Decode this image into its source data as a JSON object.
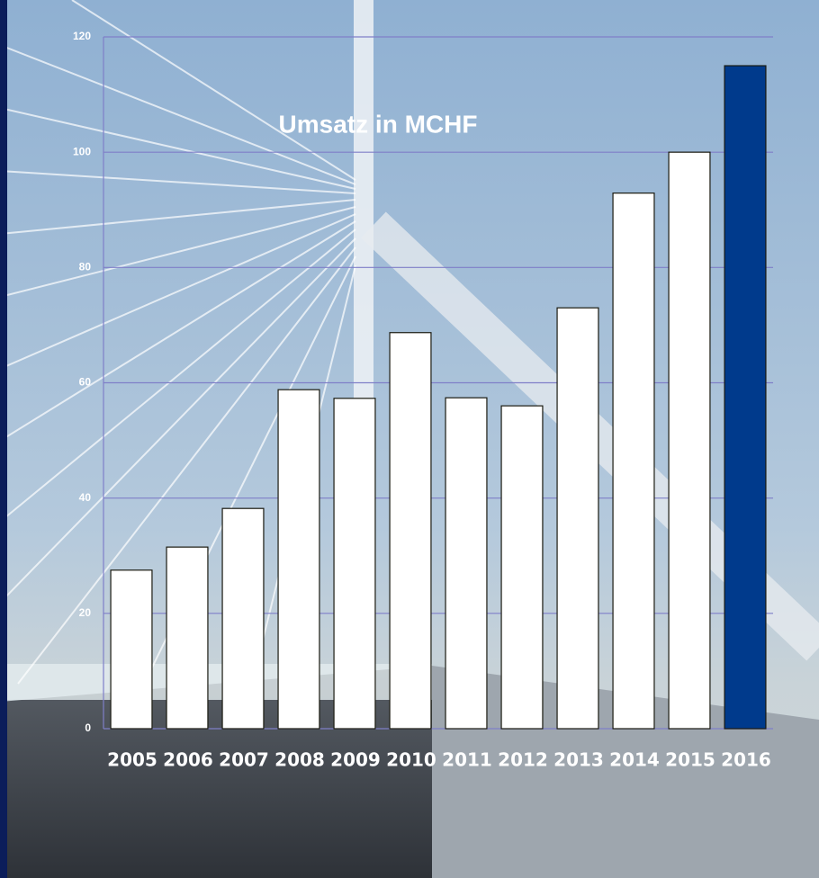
{
  "chart_data": {
    "type": "bar",
    "title": "Umsatz in MCHF",
    "categories": [
      "2005",
      "2006",
      "2007",
      "2008",
      "2009",
      "2010",
      "2011",
      "2012",
      "2013",
      "2014",
      "2015",
      "2016"
    ],
    "values": [
      27.5,
      31.5,
      38.2,
      58.8,
      57.3,
      68.7,
      57.4,
      56,
      73,
      92.9,
      100,
      115
    ],
    "colors": [
      "#ffffff",
      "#ffffff",
      "#ffffff",
      "#ffffff",
      "#ffffff",
      "#ffffff",
      "#ffffff",
      "#ffffff",
      "#ffffff",
      "#ffffff",
      "#ffffff",
      "#003a8c"
    ],
    "ylim": [
      0,
      120
    ],
    "yticks": [
      0,
      20,
      40,
      60,
      80,
      100,
      120
    ],
    "grid": true
  }
}
